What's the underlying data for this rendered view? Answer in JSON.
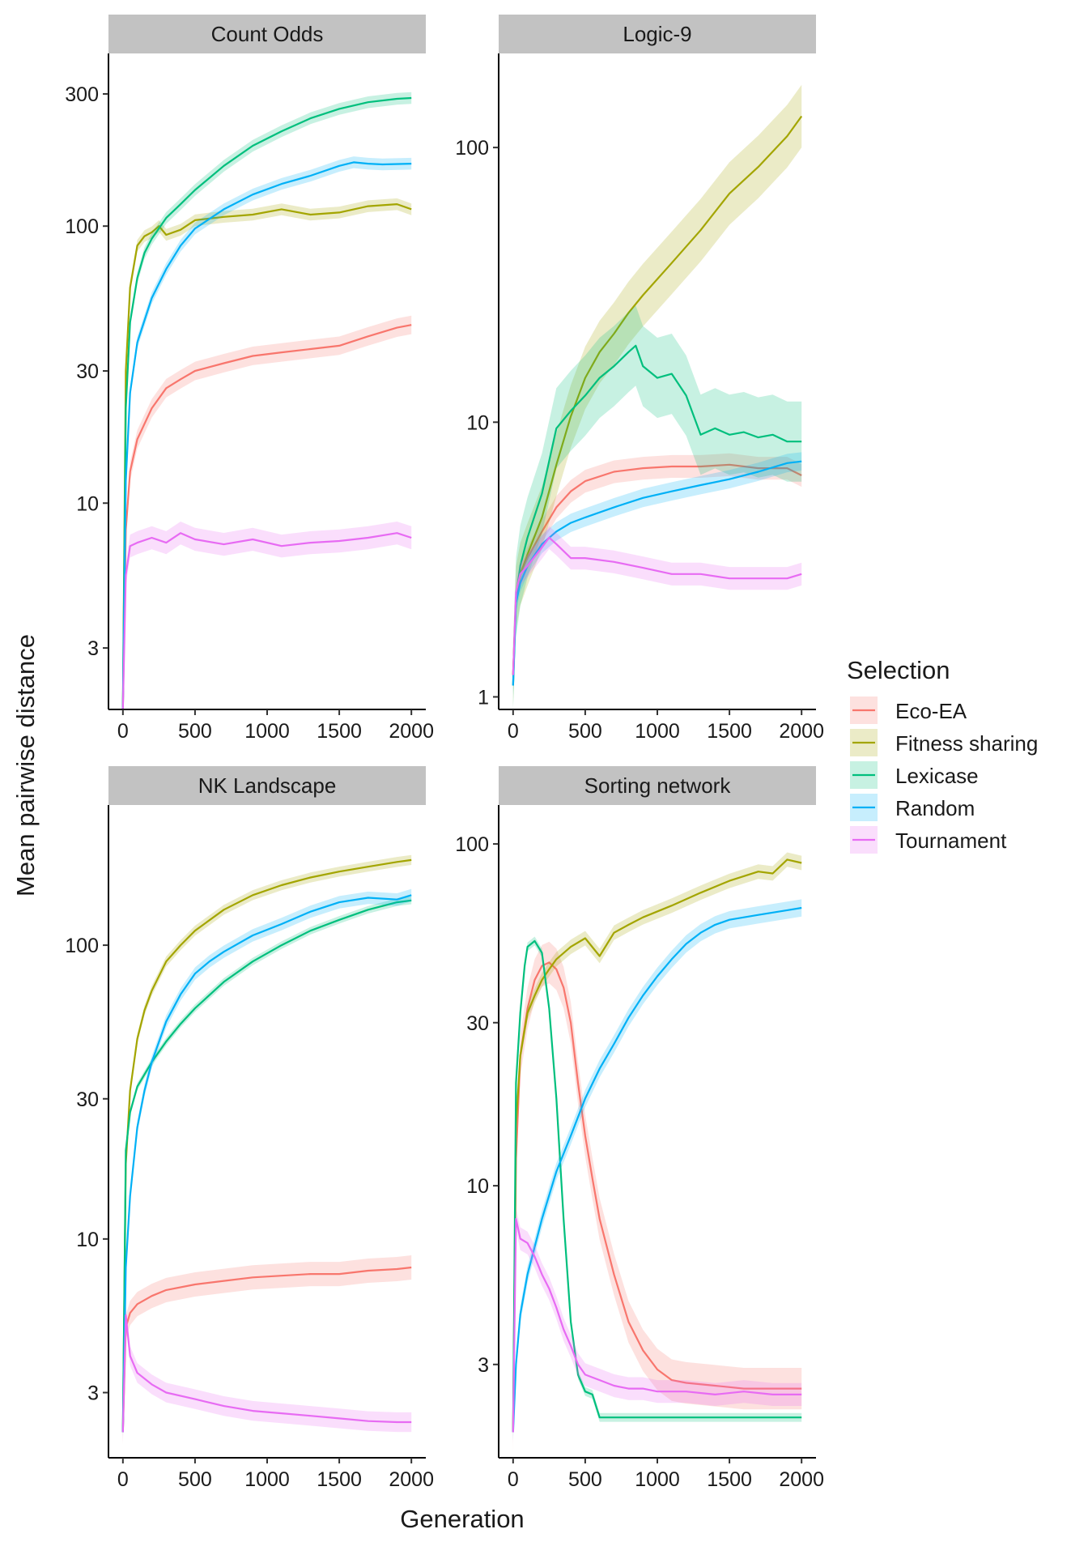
{
  "chart_data": {
    "type": "line",
    "facet_layout": "2x2 grid, shared x axis range",
    "xlabel": "Generation",
    "ylabel": "Mean pairwise distance",
    "y_scale": "log10",
    "grid": false,
    "legend": {
      "title": "Selection",
      "position": "right",
      "entries": [
        "Eco-EA",
        "Fitness sharing",
        "Lexicase",
        "Random",
        "Tournament"
      ]
    },
    "series_colors": {
      "Eco-EA": "#F8766D",
      "Fitness sharing": "#A3A500",
      "Lexicase": "#00BF7D",
      "Random": "#00B0F6",
      "Tournament": "#E76BF3"
    },
    "panels": [
      {
        "title": "Count Odds",
        "xlim": [
          -100,
          2100
        ],
        "ylim": [
          1.8,
          420
        ],
        "x_ticks": [
          "0",
          "500",
          "1000",
          "1500",
          "2000"
        ],
        "y_ticks": [
          {
            "value": 3,
            "label": "3"
          },
          {
            "value": 10,
            "label": "10"
          },
          {
            "value": 30,
            "label": "30"
          },
          {
            "value": 100,
            "label": "100"
          },
          {
            "value": 300,
            "label": "300"
          }
        ],
        "series": [
          {
            "name": "Eco-EA",
            "x": [
              0,
              20,
              50,
              100,
              200,
              300,
              400,
              500,
              700,
              900,
              1100,
              1300,
              1500,
              1700,
              1900,
              2000
            ],
            "y": [
              1.8,
              8,
              13,
              17,
              22,
              26,
              28,
              30,
              32,
              34,
              35,
              36,
              37,
              40,
              43,
              44
            ],
            "band": 0.08
          },
          {
            "name": "Fitness sharing",
            "x": [
              0,
              20,
              50,
              100,
              150,
              200,
              250,
              300,
              400,
              500,
              700,
              900,
              1100,
              1300,
              1500,
              1700,
              1900,
              2000
            ],
            "y": [
              1.8,
              30,
              60,
              85,
              92,
              95,
              100,
              93,
              97,
              105,
              108,
              110,
              115,
              110,
              112,
              118,
              120,
              115
            ],
            "band": 0.05
          },
          {
            "name": "Lexicase",
            "x": [
              0,
              20,
              50,
              100,
              150,
              200,
              300,
              400,
              500,
              700,
              900,
              1100,
              1300,
              1500,
              1700,
              1900,
              2000
            ],
            "y": [
              1.8,
              22,
              45,
              65,
              80,
              90,
              107,
              120,
              135,
              165,
              195,
              220,
              245,
              265,
              280,
              288,
              290
            ],
            "band": 0.05
          },
          {
            "name": "Random",
            "x": [
              0,
              20,
              50,
              100,
              200,
              300,
              400,
              500,
              700,
              900,
              1100,
              1300,
              1500,
              1600,
              1700,
              1800,
              2000
            ],
            "y": [
              1.8,
              12,
              25,
              38,
              55,
              70,
              85,
              98,
              115,
              130,
              142,
              152,
              165,
              170,
              168,
              167,
              168
            ],
            "band": 0.05
          },
          {
            "name": "Tournament",
            "x": [
              0,
              20,
              50,
              100,
              200,
              300,
              400,
              500,
              700,
              900,
              1100,
              1300,
              1500,
              1700,
              1900,
              2000
            ],
            "y": [
              1.8,
              5.5,
              7,
              7.2,
              7.5,
              7.2,
              7.8,
              7.4,
              7.1,
              7.4,
              7.0,
              7.2,
              7.3,
              7.5,
              7.8,
              7.5
            ],
            "band": 0.1
          }
        ]
      },
      {
        "title": "Logic-9",
        "xlim": [
          -100,
          2100
        ],
        "ylim": [
          0.9,
          220
        ],
        "x_ticks": [
          "0",
          "500",
          "1000",
          "1500",
          "2000"
        ],
        "y_ticks": [
          {
            "value": 1,
            "label": "1"
          },
          {
            "value": 10,
            "label": "10"
          },
          {
            "value": 100,
            "label": "100"
          }
        ],
        "series": [
          {
            "name": "Eco-EA",
            "x": [
              0,
              20,
              50,
              100,
              200,
              300,
              400,
              500,
              700,
              900,
              1100,
              1300,
              1500,
              1700,
              1900,
              2000
            ],
            "y": [
              1.2,
              2.3,
              2.8,
              3.2,
              4.0,
              4.9,
              5.6,
              6.1,
              6.6,
              6.8,
              6.9,
              6.9,
              7.0,
              6.8,
              6.8,
              6.4
            ],
            "band": 0.1
          },
          {
            "name": "Fitness sharing",
            "x": [
              0,
              20,
              50,
              100,
              200,
              300,
              400,
              500,
              600,
              700,
              800,
              900,
              1100,
              1300,
              1500,
              1700,
              1900,
              2000
            ],
            "y": [
              1.2,
              2.3,
              2.8,
              3.3,
              4.5,
              7,
              10.5,
              14.5,
              18,
              21,
              25,
              29,
              38,
              50,
              68,
              85,
              110,
              130
            ],
            "band": 0.3
          },
          {
            "name": "Lexicase",
            "x": [
              0,
              20,
              50,
              100,
              200,
              300,
              400,
              500,
              600,
              700,
              800,
              850,
              900,
              1000,
              1100,
              1200,
              1300,
              1400,
              1500,
              1600,
              1700,
              1800,
              1900,
              2000
            ],
            "y": [
              1.1,
              2.3,
              3.0,
              3.8,
              5.5,
              9.5,
              11,
              12.5,
              14.5,
              16,
              18,
              19,
              16,
              14.5,
              15,
              12.5,
              9,
              9.5,
              9.0,
              9.2,
              8.8,
              9.0,
              8.5,
              8.5
            ],
            "band": 0.4
          },
          {
            "name": "Random",
            "x": [
              0,
              20,
              50,
              100,
              200,
              300,
              400,
              500,
              700,
              900,
              1100,
              1300,
              1500,
              1700,
              1900,
              2000
            ],
            "y": [
              1.1,
              2.2,
              2.6,
              3.0,
              3.6,
              4.0,
              4.3,
              4.5,
              4.9,
              5.3,
              5.6,
              5.9,
              6.2,
              6.6,
              7.1,
              7.2
            ],
            "band": 0.08
          },
          {
            "name": "Tournament",
            "x": [
              0,
              20,
              50,
              100,
              200,
              250,
              300,
              400,
              500,
              700,
              900,
              1100,
              1300,
              1500,
              1700,
              1900,
              2000
            ],
            "y": [
              1.2,
              2.4,
              2.8,
              3.0,
              3.5,
              3.8,
              3.6,
              3.2,
              3.2,
              3.1,
              2.95,
              2.8,
              2.8,
              2.7,
              2.7,
              2.7,
              2.8
            ],
            "band": 0.1
          }
        ]
      },
      {
        "title": "NK Landscape",
        "xlim": [
          -100,
          2100
        ],
        "ylim": [
          1.8,
          300
        ],
        "x_ticks": [
          "0",
          "500",
          "1000",
          "1500",
          "2000"
        ],
        "y_ticks": [
          {
            "value": 3,
            "label": "3"
          },
          {
            "value": 10,
            "label": "10"
          },
          {
            "value": 30,
            "label": "30"
          },
          {
            "value": 100,
            "label": "100"
          }
        ],
        "series": [
          {
            "name": "Eco-EA",
            "x": [
              0,
              20,
              50,
              100,
              200,
              300,
              500,
              700,
              900,
              1100,
              1300,
              1500,
              1700,
              1900,
              2000
            ],
            "y": [
              2.2,
              5.0,
              5.6,
              6.0,
              6.4,
              6.7,
              7.0,
              7.2,
              7.4,
              7.5,
              7.6,
              7.6,
              7.8,
              7.9,
              8.0
            ],
            "band": 0.1
          },
          {
            "name": "Fitness sharing",
            "x": [
              0,
              20,
              50,
              100,
              150,
              200,
              300,
              400,
              500,
              700,
              900,
              1100,
              1300,
              1500,
              1700,
              1900,
              2000
            ],
            "y": [
              2.2,
              18,
              32,
              48,
              60,
              70,
              88,
              100,
              112,
              132,
              148,
              160,
              170,
              178,
              185,
              192,
              195
            ],
            "band": 0.04
          },
          {
            "name": "Lexicase",
            "x": [
              0,
              20,
              50,
              100,
              200,
              300,
              400,
              500,
              700,
              900,
              1100,
              1300,
              1500,
              1700,
              1900,
              2000
            ],
            "y": [
              2.2,
              20,
              27,
              33,
              40,
              47,
              54,
              61,
              75,
              88,
              100,
              112,
              122,
              132,
              140,
              142
            ],
            "band": 0.03
          },
          {
            "name": "Random",
            "x": [
              0,
              20,
              50,
              100,
              150,
              200,
              300,
              400,
              500,
              600,
              700,
              900,
              1100,
              1300,
              1500,
              1700,
              1900,
              2000
            ],
            "y": [
              2.2,
              8,
              14,
              24,
              32,
              40,
              55,
              68,
              80,
              88,
              95,
              108,
              118,
              130,
              140,
              145,
              143,
              148
            ],
            "band": 0.05
          },
          {
            "name": "Tournament",
            "x": [
              0,
              20,
              50,
              100,
              200,
              300,
              500,
              700,
              900,
              1100,
              1300,
              1500,
              1700,
              1900,
              2000
            ],
            "y": [
              2.2,
              5.5,
              4.0,
              3.5,
              3.2,
              3.0,
              2.85,
              2.7,
              2.6,
              2.55,
              2.5,
              2.45,
              2.4,
              2.38,
              2.38
            ],
            "band": 0.08
          }
        ]
      },
      {
        "title": "Sorting network",
        "xlim": [
          -100,
          2100
        ],
        "ylim": [
          1.6,
          130
        ],
        "x_ticks": [
          "0",
          "500",
          "1000",
          "1500",
          "2000"
        ],
        "y_ticks": [
          {
            "value": 3,
            "label": "3"
          },
          {
            "value": 10,
            "label": "10"
          },
          {
            "value": 30,
            "label": "30"
          },
          {
            "value": 100,
            "label": "100"
          }
        ],
        "series": [
          {
            "name": "Eco-EA",
            "x": [
              0,
              20,
              50,
              100,
              150,
              200,
              250,
              300,
              350,
              400,
              450,
              500,
              550,
              600,
              700,
              800,
              900,
              1000,
              1100,
              1200,
              1400,
              1600,
              1800,
              2000
            ],
            "y": [
              1.9,
              12,
              24,
              33,
              40,
              44,
              45,
              43,
              38,
              30,
              20,
              14,
              10.5,
              8,
              5.5,
              4.0,
              3.3,
              2.9,
              2.7,
              2.65,
              2.6,
              2.55,
              2.55,
              2.55
            ],
            "band": 0.15
          },
          {
            "name": "Fitness sharing",
            "x": [
              0,
              20,
              50,
              100,
              150,
              200,
              250,
              300,
              400,
              500,
              600,
              700,
              800,
              900,
              1100,
              1300,
              1500,
              1700,
              1800,
              1900,
              2000
            ],
            "y": [
              1.9,
              15,
              24,
              32,
              36,
              40,
              43,
              46,
              50,
              53,
              47,
              55,
              58,
              61,
              66,
              72,
              78,
              83,
              82,
              90,
              88
            ],
            "band": 0.05
          },
          {
            "name": "Lexicase",
            "x": [
              0,
              20,
              50,
              80,
              100,
              150,
              200,
              250,
              300,
              350,
              400,
              450,
              500,
              550,
              600,
              800,
              1000,
              1500,
              2000
            ],
            "y": [
              1.9,
              20,
              32,
              44,
              50,
              52,
              48,
              33,
              18,
              8,
              4,
              2.8,
              2.5,
              2.45,
              2.1,
              2.1,
              2.1,
              2.1,
              2.1
            ],
            "band": 0.03
          },
          {
            "name": "Random",
            "x": [
              0,
              20,
              50,
              100,
              200,
              300,
              400,
              500,
              600,
              700,
              800,
              900,
              1000,
              1100,
              1200,
              1300,
              1400,
              1500,
              1600,
              1700,
              1800,
              1900,
              2000
            ],
            "y": [
              1.9,
              3.0,
              4.2,
              5.5,
              8,
              11,
              14,
              18,
              22,
              26,
              31,
              36,
              41,
              46,
              51,
              55,
              58,
              60,
              61,
              62,
              63,
              64,
              65
            ],
            "band": 0.06
          },
          {
            "name": "Tournament",
            "x": [
              0,
              20,
              50,
              100,
              150,
              200,
              250,
              300,
              350,
              400,
              450,
              500,
              600,
              700,
              800,
              900,
              1000,
              1200,
              1400,
              1600,
              1800,
              2000
            ],
            "y": [
              1.9,
              8,
              7,
              6.8,
              6.2,
              5.5,
              5.0,
              4.4,
              3.8,
              3.4,
              3.0,
              2.8,
              2.7,
              2.6,
              2.55,
              2.55,
              2.5,
              2.5,
              2.45,
              2.5,
              2.45,
              2.45
            ],
            "band": 0.08
          }
        ]
      }
    ]
  }
}
